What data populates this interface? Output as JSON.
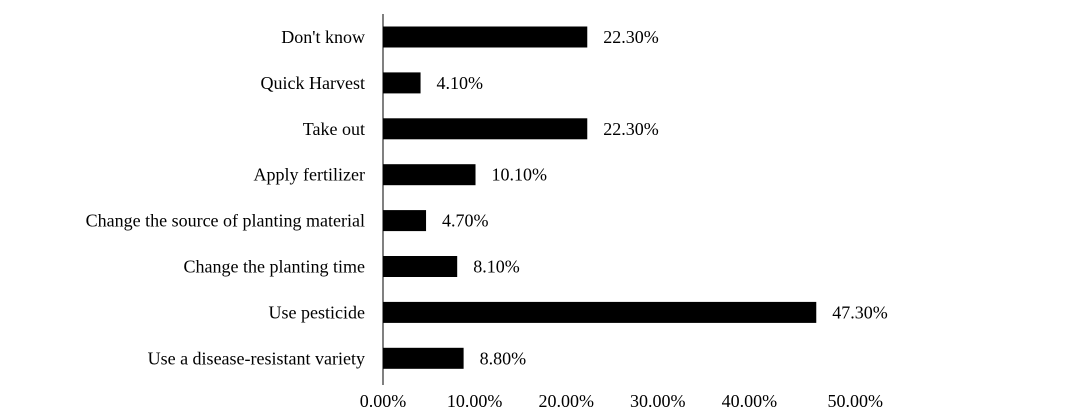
{
  "chart_data": {
    "type": "bar",
    "orientation": "horizontal",
    "categories": [
      "Don't know",
      "Quick Harvest",
      "Take out",
      "Apply fertilizer",
      "Change the source of planting material",
      "Change the planting time",
      "Use pesticide",
      "Use a disease-resistant variety"
    ],
    "values": [
      22.3,
      4.1,
      22.3,
      10.1,
      4.7,
      8.1,
      47.3,
      8.8
    ],
    "data_labels": [
      "22.30%",
      "4.10%",
      "22.30%",
      "10.10%",
      "4.70%",
      "8.10%",
      "47.30%",
      "8.80%"
    ],
    "x_ticks": [
      "0.00%",
      "10.00%",
      "20.00%",
      "30.00%",
      "40.00%",
      "50.00%"
    ],
    "x_tick_values": [
      0,
      10,
      20,
      30,
      40,
      50
    ],
    "xlim": [
      0,
      50
    ],
    "grid": false,
    "legend": "none",
    "bar_color": "#000000",
    "axis_color": "#000000",
    "title": "",
    "xlabel": "",
    "ylabel": ""
  }
}
